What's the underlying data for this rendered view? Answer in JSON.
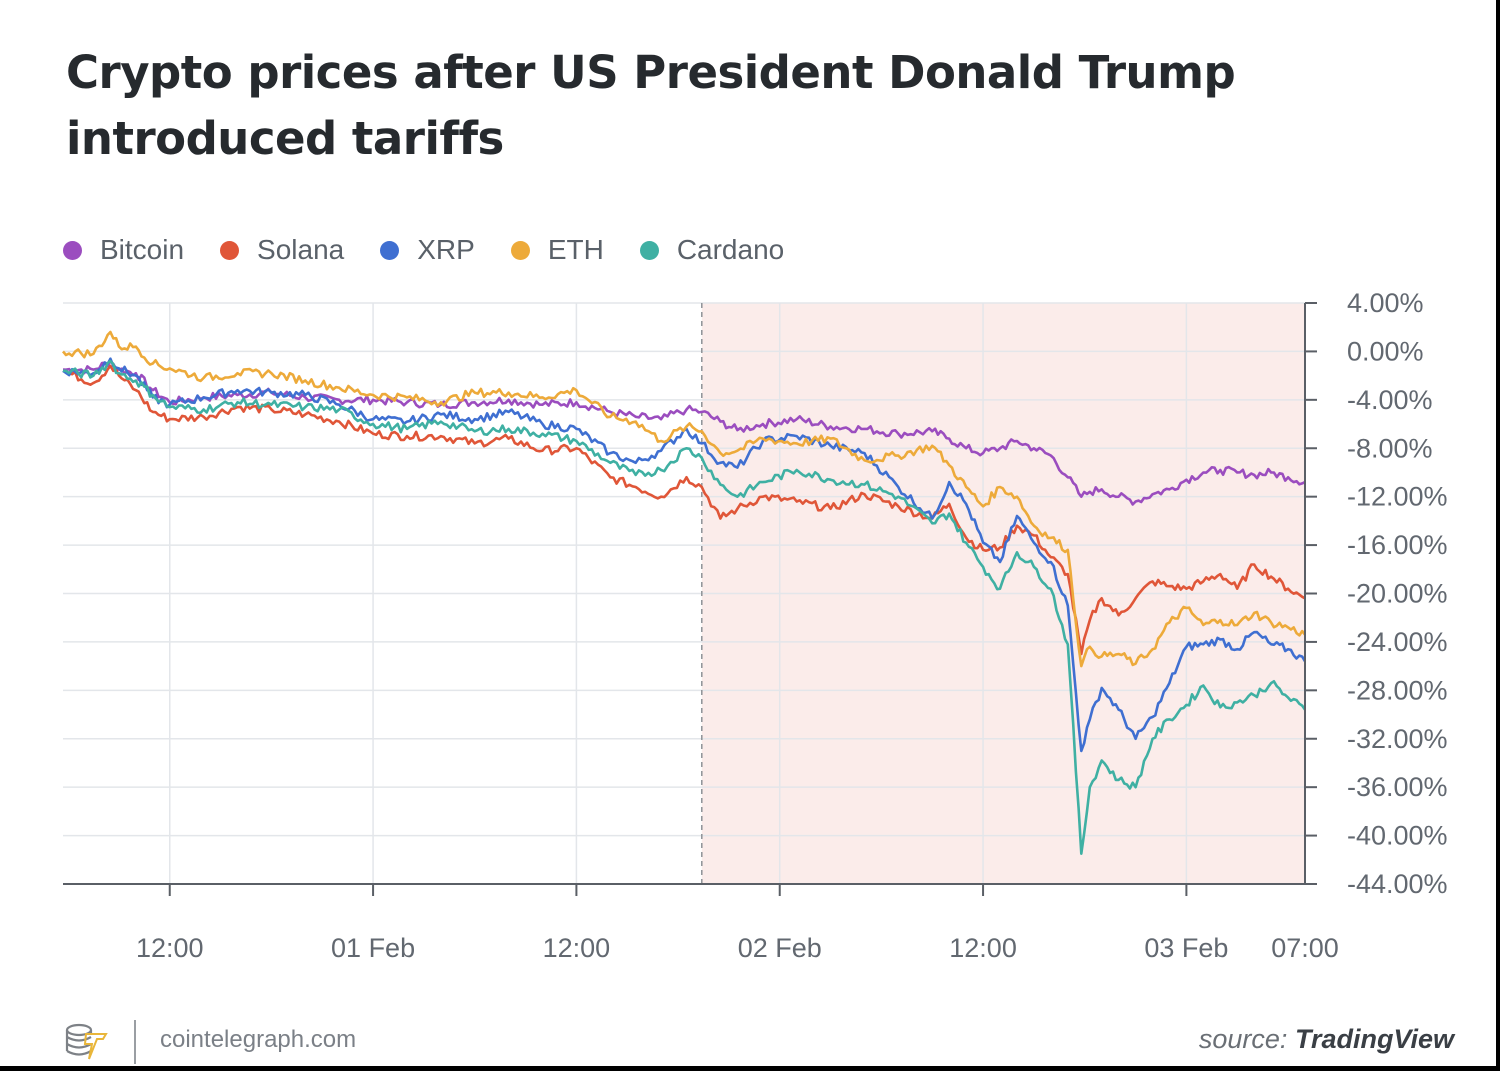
{
  "title": "Crypto prices after US President Donald Trump introduced tariffs",
  "footer": {
    "site": "cointelegraph.com",
    "source_prefix": "source:",
    "source_name": "TradingView"
  },
  "colors": {
    "Bitcoin": "#9b4dbf",
    "Solana": "#e05638",
    "XRP": "#3f6fd1",
    "ETH": "#edaa3a",
    "Cardano": "#3fb0a3",
    "shade": "#fbecea",
    "grid": "#e3e6ea",
    "axis": "#5a5f66"
  },
  "chart_data": {
    "type": "line",
    "title": "Crypto prices after US President Donald Trump introduced tariffs",
    "xlabel": "",
    "ylabel": "",
    "x_unit": "hours since 31 Jan 00:00",
    "xlim": [
      5.7,
      79.0
    ],
    "ylim": [
      -44,
      4
    ],
    "y_ticks": [
      4,
      0,
      -4,
      -8,
      -12,
      -16,
      -20,
      -24,
      -28,
      -32,
      -36,
      -40,
      -44
    ],
    "y_tick_labels": [
      "4.00%",
      "0.00%",
      "-4.00%",
      "-8.00%",
      "-12.00%",
      "-16.00%",
      "-20.00%",
      "-24.00%",
      "-28.00%",
      "-32.00%",
      "-36.00%",
      "-40.00%",
      "-44.00%"
    ],
    "x_ticks": [
      12,
      24,
      36,
      48,
      60,
      72,
      79
    ],
    "x_tick_labels": [
      "12:00",
      "01 Feb",
      "12:00",
      "02 Feb",
      "12:00",
      "03 Feb",
      "07:00"
    ],
    "grid": true,
    "legend": "top-left",
    "highlight_region": {
      "x_start": 43.4,
      "x_end": 79.0,
      "note": "shaded period after tariff announcement"
    },
    "x": [
      5.7,
      7.5,
      8.5,
      9.0,
      10.0,
      11.0,
      12.0,
      14.0,
      16.0,
      18.0,
      20.0,
      22.0,
      24.0,
      26.0,
      28.0,
      30.0,
      32.0,
      34.0,
      36.0,
      38.0,
      39.5,
      41.0,
      42.5,
      43.4,
      44.5,
      45.5,
      47.0,
      49.0,
      51.0,
      53.0,
      55.0,
      57.0,
      58.0,
      59.0,
      60.0,
      61.0,
      62.0,
      63.0,
      64.0,
      65.0,
      65.8,
      66.3,
      67.0,
      68.0,
      69.0,
      70.0,
      71.0,
      72.0,
      73.0,
      74.0,
      75.0,
      76.0,
      77.0,
      78.0,
      79.0
    ],
    "series": [
      {
        "name": "Bitcoin",
        "values": [
          -1.5,
          -1.5,
          -0.8,
          -1.5,
          -1.8,
          -3.2,
          -4.2,
          -3.8,
          -3.6,
          -3.4,
          -3.8,
          -4.0,
          -4.0,
          -4.2,
          -4.4,
          -4.2,
          -4.0,
          -4.4,
          -4.2,
          -5.0,
          -5.4,
          -5.6,
          -4.8,
          -5.0,
          -5.8,
          -6.5,
          -6.0,
          -5.6,
          -6.2,
          -6.4,
          -6.8,
          -6.6,
          -7.2,
          -8.0,
          -8.4,
          -8.0,
          -7.4,
          -8.0,
          -8.6,
          -10.4,
          -12.0,
          -11.6,
          -11.4,
          -12.0,
          -12.4,
          -11.8,
          -11.4,
          -10.6,
          -10.0,
          -9.8,
          -10.0,
          -10.2,
          -10.0,
          -10.4,
          -10.8
        ]
      },
      {
        "name": "Solana",
        "values": [
          -1.6,
          -2.6,
          -1.2,
          -2.0,
          -3.2,
          -5.0,
          -5.6,
          -5.4,
          -4.6,
          -4.8,
          -5.2,
          -5.8,
          -6.8,
          -7.0,
          -7.0,
          -7.6,
          -7.2,
          -8.2,
          -8.0,
          -10.4,
          -11.2,
          -12.0,
          -10.4,
          -11.2,
          -13.8,
          -13.0,
          -12.0,
          -12.4,
          -13.0,
          -11.8,
          -12.8,
          -13.8,
          -12.6,
          -15.4,
          -16.4,
          -16.2,
          -14.4,
          -15.2,
          -17.0,
          -18.4,
          -25.0,
          -22.2,
          -20.4,
          -21.8,
          -20.4,
          -19.0,
          -19.4,
          -19.6,
          -19.0,
          -18.4,
          -19.6,
          -17.6,
          -18.6,
          -19.6,
          -20.4
        ]
      },
      {
        "name": "XRP",
        "values": [
          -1.6,
          -1.8,
          -0.6,
          -1.4,
          -2.0,
          -3.8,
          -4.4,
          -3.8,
          -3.2,
          -3.4,
          -3.6,
          -4.4,
          -5.6,
          -5.8,
          -5.2,
          -5.6,
          -5.0,
          -6.0,
          -6.4,
          -8.4,
          -9.2,
          -8.2,
          -6.4,
          -7.6,
          -9.2,
          -9.6,
          -7.4,
          -7.0,
          -7.8,
          -8.4,
          -11.2,
          -13.8,
          -10.8,
          -12.6,
          -15.8,
          -17.4,
          -13.6,
          -15.8,
          -17.4,
          -21.0,
          -33.0,
          -30.4,
          -27.8,
          -29.6,
          -32.0,
          -30.2,
          -27.4,
          -24.4,
          -24.2,
          -23.8,
          -24.6,
          -23.2,
          -24.2,
          -24.6,
          -25.6
        ]
      },
      {
        "name": "ETH",
        "values": [
          0.0,
          -0.2,
          1.6,
          0.4,
          0.4,
          -1.0,
          -1.4,
          -2.2,
          -1.8,
          -1.8,
          -2.4,
          -3.0,
          -3.6,
          -3.8,
          -4.2,
          -3.4,
          -3.4,
          -3.8,
          -3.2,
          -5.4,
          -5.8,
          -7.4,
          -6.2,
          -6.6,
          -8.4,
          -8.2,
          -7.2,
          -7.6,
          -7.2,
          -9.0,
          -8.6,
          -7.8,
          -9.4,
          -11.2,
          -12.8,
          -11.2,
          -12.0,
          -14.4,
          -15.4,
          -16.4,
          -26.0,
          -24.4,
          -25.2,
          -25.0,
          -25.8,
          -24.6,
          -22.4,
          -21.2,
          -22.6,
          -22.2,
          -22.6,
          -21.6,
          -22.4,
          -22.8,
          -23.4
        ]
      },
      {
        "name": "Cardano",
        "values": [
          -1.6,
          -2.0,
          -0.8,
          -1.8,
          -2.4,
          -3.6,
          -4.6,
          -4.8,
          -4.2,
          -4.4,
          -4.6,
          -4.8,
          -6.0,
          -6.4,
          -5.8,
          -6.6,
          -6.4,
          -6.8,
          -7.4,
          -9.2,
          -10.2,
          -9.8,
          -8.0,
          -8.8,
          -11.0,
          -12.0,
          -10.8,
          -9.8,
          -10.6,
          -11.0,
          -12.0,
          -14.2,
          -13.4,
          -15.8,
          -17.8,
          -19.6,
          -16.6,
          -17.8,
          -19.6,
          -24.2,
          -41.5,
          -36.0,
          -33.8,
          -35.4,
          -36.0,
          -32.0,
          -30.4,
          -29.2,
          -27.6,
          -29.4,
          -29.0,
          -28.4,
          -27.4,
          -28.6,
          -29.6
        ]
      }
    ]
  }
}
